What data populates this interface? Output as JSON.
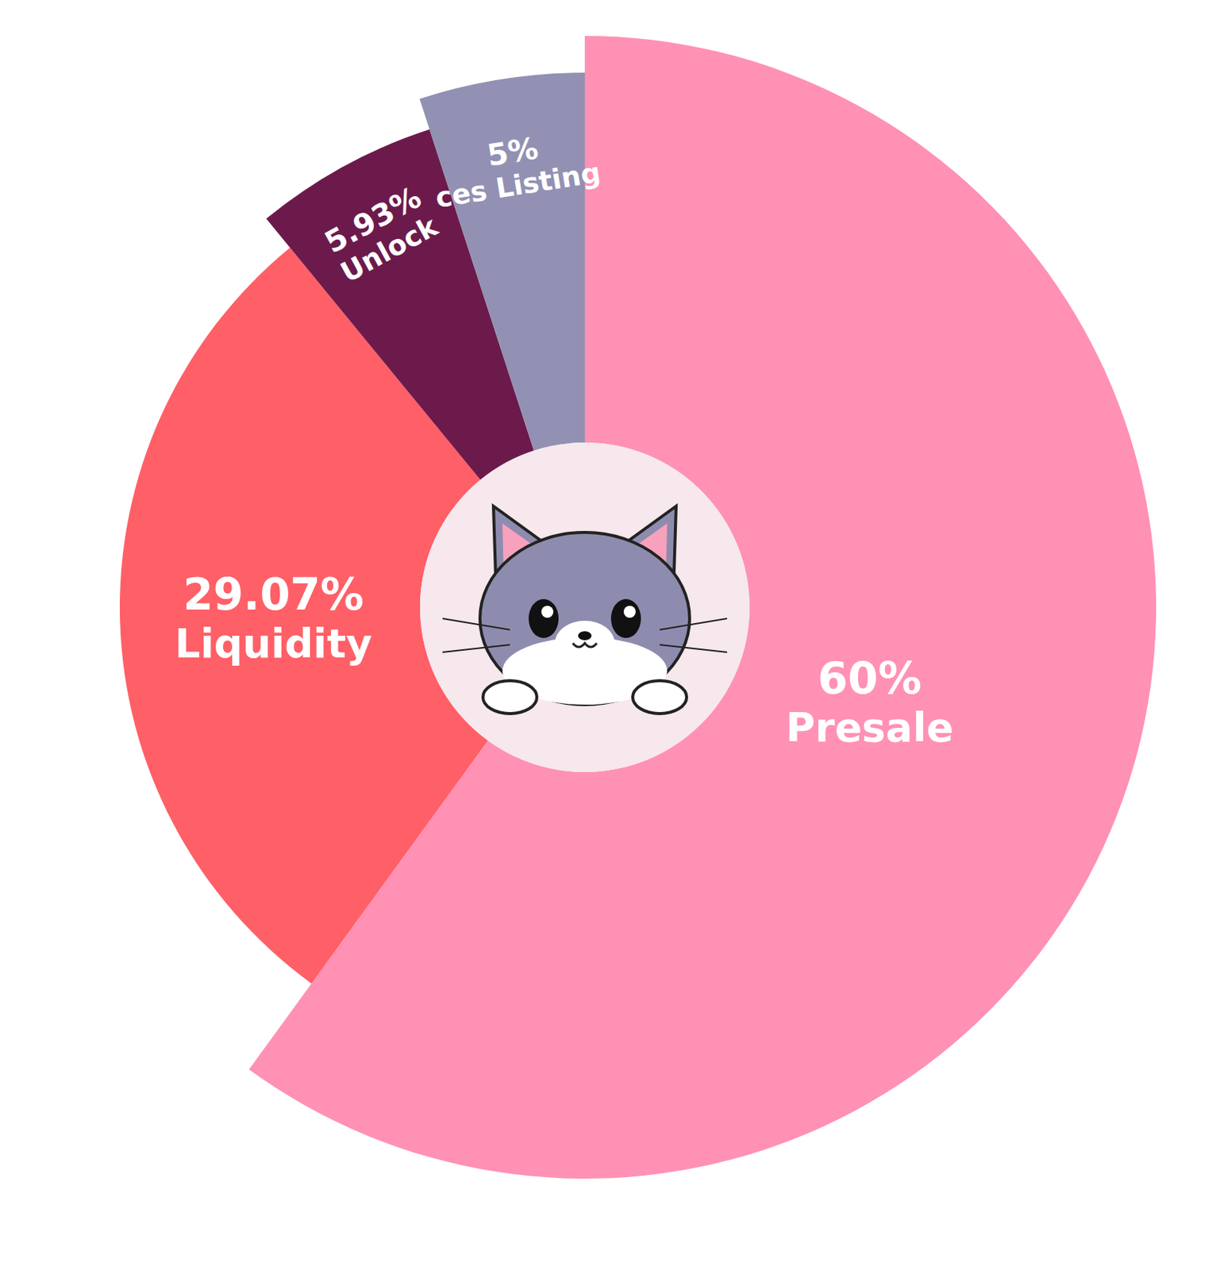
{
  "chart_data": {
    "type": "pie",
    "categories": [
      "Presale",
      "Liquidity",
      "Unlock",
      "ces Listing"
    ],
    "values": [
      60,
      29.07,
      5.93,
      5
    ],
    "value_labels": [
      "60%",
      "29.07%",
      "5.93%",
      "5%"
    ],
    "colors": [
      "#ff91b4",
      "#ff5f67",
      "#6c1a4b",
      "#9291b3"
    ],
    "data_labels": true,
    "legend": false
  }
}
